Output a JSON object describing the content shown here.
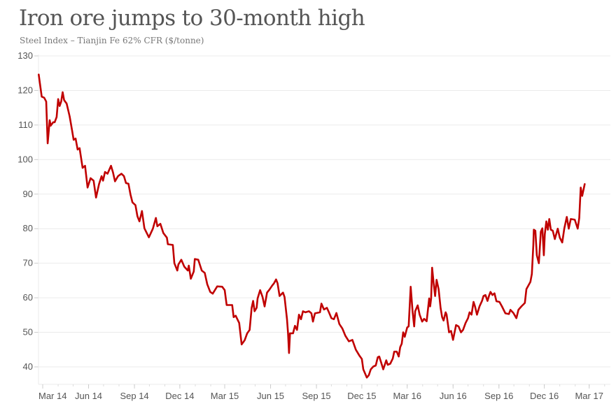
{
  "chart_data": {
    "type": "line",
    "title": "Iron ore jumps to 30-month high",
    "subtitle": "Steel Index – Tianjin Fe 62% CFR ($/tonne)",
    "xlabel": "",
    "ylabel": "",
    "ylim": [
      35,
      130
    ],
    "xlim": [
      "2014-02-21",
      "2017-03-31"
    ],
    "yticks": [
      130,
      120,
      110,
      100,
      90,
      80,
      70,
      60,
      50,
      40
    ],
    "xticks": [
      {
        "date": "2014-03-01",
        "label": "Mar 14"
      },
      {
        "date": "2014-06-01",
        "label": "Jun 14"
      },
      {
        "date": "2014-09-01",
        "label": "Sep 14"
      },
      {
        "date": "2014-12-01",
        "label": "Dec 14"
      },
      {
        "date": "2015-03-01",
        "label": "Mar 15"
      },
      {
        "date": "2015-06-01",
        "label": "Jun 15"
      },
      {
        "date": "2015-09-01",
        "label": "Sep 15"
      },
      {
        "date": "2015-12-01",
        "label": "Dec 15"
      },
      {
        "date": "2016-03-01",
        "label": "Mar 16"
      },
      {
        "date": "2016-06-01",
        "label": "Jun 16"
      },
      {
        "date": "2016-09-01",
        "label": "Sep 16"
      },
      {
        "date": "2016-12-01",
        "label": "Dec 16"
      },
      {
        "date": "2017-03-01",
        "label": "Mar 17"
      }
    ],
    "grid": "horizontal",
    "line_color": "#c00000",
    "series": [
      {
        "points": [
          [
            "2014-02-21",
            124.6
          ],
          [
            "2014-02-27",
            118.2
          ],
          [
            "2014-03-04",
            117.9
          ],
          [
            "2014-03-08",
            116.8
          ],
          [
            "2014-03-11",
            104.7
          ],
          [
            "2014-03-15",
            111.4
          ],
          [
            "2014-03-17",
            109.8
          ],
          [
            "2014-03-22",
            110.8
          ],
          [
            "2014-03-25",
            110.8
          ],
          [
            "2014-03-29",
            112.3
          ],
          [
            "2014-04-01",
            117.5
          ],
          [
            "2014-04-04",
            115.5
          ],
          [
            "2014-04-07",
            116.8
          ],
          [
            "2014-04-10",
            119.5
          ],
          [
            "2014-04-13",
            117.2
          ],
          [
            "2014-04-18",
            116.2
          ],
          [
            "2014-04-24",
            112.5
          ],
          [
            "2014-04-29",
            108.4
          ],
          [
            "2014-05-02",
            105.7
          ],
          [
            "2014-05-06",
            106.1
          ],
          [
            "2014-05-10",
            102.9
          ],
          [
            "2014-05-14",
            103.3
          ],
          [
            "2014-05-20",
            97.6
          ],
          [
            "2014-05-25",
            98.2
          ],
          [
            "2014-05-30",
            91.9
          ],
          [
            "2014-06-05",
            94.6
          ],
          [
            "2014-06-11",
            93.9
          ],
          [
            "2014-06-16",
            89.0
          ],
          [
            "2014-06-22",
            92.9
          ],
          [
            "2014-06-27",
            95.2
          ],
          [
            "2014-06-30",
            93.9
          ],
          [
            "2014-07-04",
            96.4
          ],
          [
            "2014-07-09",
            95.9
          ],
          [
            "2014-07-16",
            98.2
          ],
          [
            "2014-07-20",
            96.3
          ],
          [
            "2014-07-24",
            93.7
          ],
          [
            "2014-07-30",
            95.2
          ],
          [
            "2014-08-06",
            95.9
          ],
          [
            "2014-08-11",
            95.2
          ],
          [
            "2014-08-15",
            93.2
          ],
          [
            "2014-08-20",
            93.0
          ],
          [
            "2014-08-24",
            89.9
          ],
          [
            "2014-08-28",
            87.6
          ],
          [
            "2014-09-03",
            86.8
          ],
          [
            "2014-09-07",
            83.6
          ],
          [
            "2014-09-11",
            82.1
          ],
          [
            "2014-09-16",
            85.1
          ],
          [
            "2014-09-21",
            80.1
          ],
          [
            "2014-09-30",
            77.5
          ],
          [
            "2014-10-08",
            80.0
          ],
          [
            "2014-10-14",
            83.1
          ],
          [
            "2014-10-17",
            80.7
          ],
          [
            "2014-10-23",
            81.4
          ],
          [
            "2014-10-29",
            78.7
          ],
          [
            "2014-11-05",
            77.4
          ],
          [
            "2014-11-07",
            75.5
          ],
          [
            "2014-11-17",
            75.3
          ],
          [
            "2014-11-20",
            70.0
          ],
          [
            "2014-11-26",
            67.9
          ],
          [
            "2014-11-28",
            69.6
          ],
          [
            "2014-12-04",
            71.0
          ],
          [
            "2014-12-10",
            69.0
          ],
          [
            "2014-12-17",
            67.9
          ],
          [
            "2014-12-19",
            69.3
          ],
          [
            "2014-12-23",
            65.5
          ],
          [
            "2014-12-29",
            67.6
          ],
          [
            "2014-12-31",
            71.2
          ],
          [
            "2015-01-07",
            71.0
          ],
          [
            "2015-01-14",
            67.9
          ],
          [
            "2015-01-20",
            67.2
          ],
          [
            "2015-01-25",
            63.9
          ],
          [
            "2015-01-31",
            61.7
          ],
          [
            "2015-02-05",
            61.2
          ],
          [
            "2015-02-14",
            63.3
          ],
          [
            "2015-02-24",
            63.2
          ],
          [
            "2015-03-01",
            62.2
          ],
          [
            "2015-03-05",
            57.9
          ],
          [
            "2015-03-16",
            57.9
          ],
          [
            "2015-03-19",
            54.4
          ],
          [
            "2015-03-23",
            54.8
          ],
          [
            "2015-03-30",
            52.7
          ],
          [
            "2015-04-04",
            46.5
          ],
          [
            "2015-04-10",
            47.7
          ],
          [
            "2015-04-15",
            49.7
          ],
          [
            "2015-04-20",
            50.7
          ],
          [
            "2015-04-24",
            57.1
          ],
          [
            "2015-04-27",
            59.1
          ],
          [
            "2015-04-30",
            56.1
          ],
          [
            "2015-05-04",
            57.1
          ],
          [
            "2015-05-06",
            59.8
          ],
          [
            "2015-05-11",
            62.2
          ],
          [
            "2015-05-16",
            60.2
          ],
          [
            "2015-05-20",
            57.5
          ],
          [
            "2015-05-25",
            61.5
          ],
          [
            "2015-05-30",
            62.4
          ],
          [
            "2015-06-04",
            63.5
          ],
          [
            "2015-06-08",
            64.2
          ],
          [
            "2015-06-12",
            65.3
          ],
          [
            "2015-06-15",
            64.2
          ],
          [
            "2015-06-19",
            60.5
          ],
          [
            "2015-06-26",
            61.5
          ],
          [
            "2015-06-29",
            60.2
          ],
          [
            "2015-07-04",
            53.8
          ],
          [
            "2015-07-06",
            49.7
          ],
          [
            "2015-07-08",
            44.0
          ],
          [
            "2015-07-10",
            49.7
          ],
          [
            "2015-07-16",
            49.7
          ],
          [
            "2015-07-20",
            51.9
          ],
          [
            "2015-07-24",
            50.7
          ],
          [
            "2015-07-28",
            55.1
          ],
          [
            "2015-08-01",
            53.8
          ],
          [
            "2015-08-05",
            56.1
          ],
          [
            "2015-08-10",
            55.8
          ],
          [
            "2015-08-17",
            56.1
          ],
          [
            "2015-08-22",
            55.5
          ],
          [
            "2015-08-25",
            53.1
          ],
          [
            "2015-08-29",
            55.5
          ],
          [
            "2015-09-08",
            55.8
          ],
          [
            "2015-09-11",
            58.3
          ],
          [
            "2015-09-16",
            56.6
          ],
          [
            "2015-09-22",
            57.1
          ],
          [
            "2015-09-26",
            55.8
          ],
          [
            "2015-10-01",
            54.1
          ],
          [
            "2015-10-06",
            53.8
          ],
          [
            "2015-10-11",
            55.6
          ],
          [
            "2015-10-17",
            52.4
          ],
          [
            "2015-10-23",
            51.1
          ],
          [
            "2015-10-29",
            49.0
          ],
          [
            "2015-11-05",
            47.4
          ],
          [
            "2015-11-12",
            47.8
          ],
          [
            "2015-11-19",
            45.0
          ],
          [
            "2015-11-26",
            43.3
          ],
          [
            "2015-12-01",
            42.3
          ],
          [
            "2015-12-04",
            39.3
          ],
          [
            "2015-12-11",
            36.9
          ],
          [
            "2015-12-15",
            37.6
          ],
          [
            "2015-12-19",
            39.3
          ],
          [
            "2015-12-24",
            40.1
          ],
          [
            "2015-12-29",
            40.4
          ],
          [
            "2016-01-02",
            42.8
          ],
          [
            "2016-01-05",
            43.0
          ],
          [
            "2016-01-08",
            41.6
          ],
          [
            "2016-01-13",
            39.3
          ],
          [
            "2016-01-19",
            41.9
          ],
          [
            "2016-01-22",
            40.6
          ],
          [
            "2016-01-27",
            40.9
          ],
          [
            "2016-02-01",
            42.4
          ],
          [
            "2016-02-04",
            44.4
          ],
          [
            "2016-02-09",
            44.4
          ],
          [
            "2016-02-13",
            43.0
          ],
          [
            "2016-02-16",
            45.7
          ],
          [
            "2016-02-19",
            46.7
          ],
          [
            "2016-02-22",
            50.0
          ],
          [
            "2016-02-25",
            48.7
          ],
          [
            "2016-03-01",
            51.4
          ],
          [
            "2016-03-04",
            51.7
          ],
          [
            "2016-03-08",
            63.2
          ],
          [
            "2016-03-12",
            55.8
          ],
          [
            "2016-03-15",
            51.7
          ],
          [
            "2016-03-17",
            56.1
          ],
          [
            "2016-03-22",
            57.8
          ],
          [
            "2016-03-26",
            55.1
          ],
          [
            "2016-03-31",
            53.1
          ],
          [
            "2016-04-04",
            53.9
          ],
          [
            "2016-04-09",
            53.2
          ],
          [
            "2016-04-14",
            59.8
          ],
          [
            "2016-04-16",
            57.5
          ],
          [
            "2016-04-18",
            59.8
          ],
          [
            "2016-04-20",
            68.7
          ],
          [
            "2016-04-23",
            64.2
          ],
          [
            "2016-04-26",
            60.5
          ],
          [
            "2016-04-29",
            65.2
          ],
          [
            "2016-05-03",
            62.5
          ],
          [
            "2016-05-07",
            57.1
          ],
          [
            "2016-05-10",
            54.4
          ],
          [
            "2016-05-13",
            53.4
          ],
          [
            "2016-05-17",
            55.8
          ],
          [
            "2016-05-19",
            55.1
          ],
          [
            "2016-05-24",
            50.0
          ],
          [
            "2016-05-28",
            50.4
          ],
          [
            "2016-06-01",
            47.8
          ],
          [
            "2016-06-07",
            52.1
          ],
          [
            "2016-06-12",
            51.7
          ],
          [
            "2016-06-17",
            50.0
          ],
          [
            "2016-06-21",
            50.7
          ],
          [
            "2016-06-26",
            52.7
          ],
          [
            "2016-07-01",
            54.1
          ],
          [
            "2016-07-04",
            55.8
          ],
          [
            "2016-07-08",
            55.1
          ],
          [
            "2016-07-12",
            58.8
          ],
          [
            "2016-07-15",
            57.5
          ],
          [
            "2016-07-19",
            55.1
          ],
          [
            "2016-07-24",
            57.5
          ],
          [
            "2016-07-29",
            59.1
          ],
          [
            "2016-08-01",
            60.5
          ],
          [
            "2016-08-05",
            60.8
          ],
          [
            "2016-08-09",
            59.1
          ],
          [
            "2016-08-12",
            60.5
          ],
          [
            "2016-08-15",
            61.7
          ],
          [
            "2016-08-19",
            60.8
          ],
          [
            "2016-08-23",
            61.3
          ],
          [
            "2016-08-27",
            59.0
          ],
          [
            "2016-09-02",
            58.8
          ],
          [
            "2016-09-07",
            57.5
          ],
          [
            "2016-09-14",
            55.5
          ],
          [
            "2016-09-21",
            55.3
          ],
          [
            "2016-09-24",
            56.5
          ],
          [
            "2016-09-30",
            55.6
          ],
          [
            "2016-10-06",
            54.1
          ],
          [
            "2016-10-10",
            56.5
          ],
          [
            "2016-10-16",
            57.5
          ],
          [
            "2016-10-23",
            58.5
          ],
          [
            "2016-10-26",
            62.5
          ],
          [
            "2016-11-03",
            64.6
          ],
          [
            "2016-11-06",
            66.9
          ],
          [
            "2016-11-09",
            75.3
          ],
          [
            "2016-11-10",
            79.7
          ],
          [
            "2016-11-13",
            79.4
          ],
          [
            "2016-11-16",
            72.3
          ],
          [
            "2016-11-20",
            70.0
          ],
          [
            "2016-11-24",
            79.1
          ],
          [
            "2016-11-27",
            80.1
          ],
          [
            "2016-11-30",
            72.3
          ],
          [
            "2016-12-02",
            78.4
          ],
          [
            "2016-12-05",
            82.1
          ],
          [
            "2016-12-08",
            79.7
          ],
          [
            "2016-12-11",
            82.8
          ],
          [
            "2016-12-14",
            79.7
          ],
          [
            "2016-12-18",
            79.4
          ],
          [
            "2016-12-22",
            77.0
          ],
          [
            "2016-12-28",
            80.0
          ],
          [
            "2017-01-01",
            77.4
          ],
          [
            "2017-01-06",
            76.0
          ],
          [
            "2017-01-10",
            80.0
          ],
          [
            "2017-01-15",
            83.4
          ],
          [
            "2017-01-19",
            80.0
          ],
          [
            "2017-01-23",
            82.8
          ],
          [
            "2017-01-31",
            82.6
          ],
          [
            "2017-02-06",
            80.0
          ],
          [
            "2017-02-09",
            83.1
          ],
          [
            "2017-02-12",
            91.9
          ],
          [
            "2017-02-15",
            89.5
          ],
          [
            "2017-02-20",
            92.9
          ]
        ]
      }
    ]
  }
}
